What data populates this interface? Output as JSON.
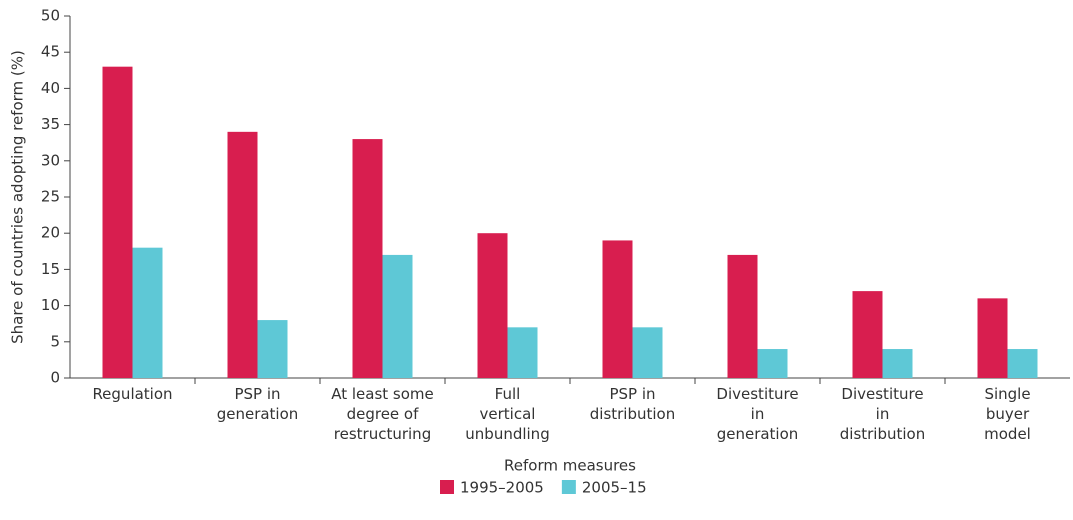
{
  "chart_data": {
    "type": "bar",
    "x_label": "Reform measures",
    "y_label": "Share of countries adopting reform (%)",
    "categories": [
      "Regulation",
      "PSP in\ngeneration",
      "At least some\ndegree of\nrestructuring",
      "Full\nvertical\nunbundling",
      "PSP in\ndistribution",
      "Divestiture\nin\ngeneration",
      "Divestiture\nin\ndistribution",
      "Single\nbuyer\nmodel"
    ],
    "series": [
      {
        "name": "1995–2005",
        "color": "#d81e4f",
        "values": [
          43,
          34,
          33,
          20,
          19,
          17,
          12,
          11
        ]
      },
      {
        "name": "2005–15",
        "color": "#5ec8d6",
        "values": [
          18,
          8,
          17,
          7,
          7,
          4,
          4,
          4
        ]
      }
    ],
    "ylim": [
      0,
      50
    ],
    "yticks": [
      0,
      5,
      10,
      15,
      20,
      25,
      30,
      35,
      40,
      45,
      50
    ]
  }
}
